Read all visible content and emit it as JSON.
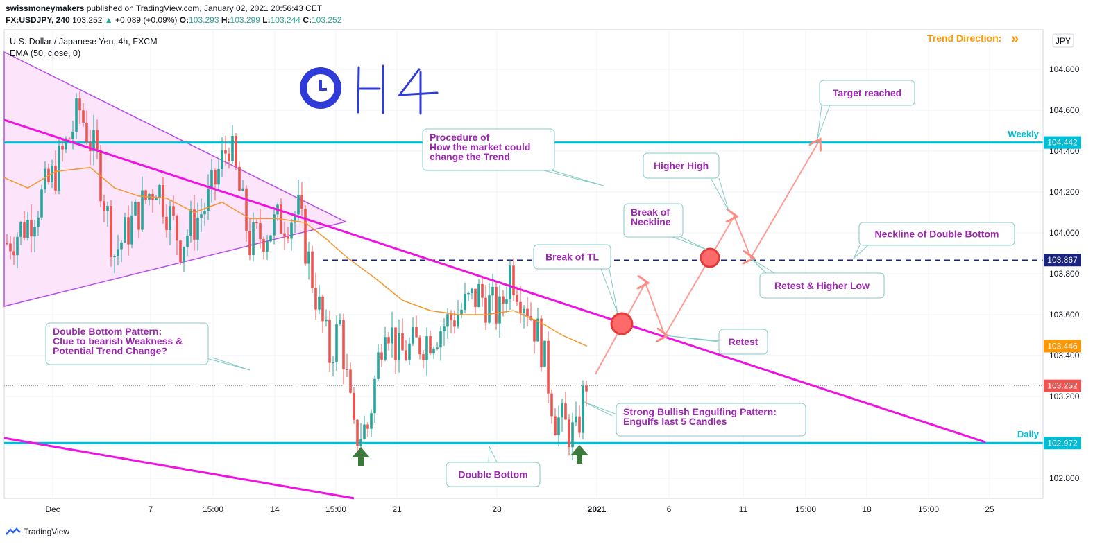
{
  "header": {
    "author": "swissmoneymakers",
    "published": "published on TradingView.com, January 02, 2021 20:56:43 CET",
    "symbol": "FX:USDJPY, 240",
    "last": "103.252",
    "change": "+0.089 (+0.09%)",
    "o_label": "O:",
    "o": "103.293",
    "h_label": "H:",
    "h": "103.299",
    "l_label": "L:",
    "l": "103.244",
    "c_label": "C:",
    "c": "103.252"
  },
  "legend": {
    "instrument": "U.S. Dollar / Japanese Yen, 4h, FXCM",
    "indicator": "EMA (50, close, 0)"
  },
  "footer": {
    "brand": "TradingView"
  },
  "chart_data": {
    "type": "candlestick",
    "currency": "JPY",
    "ylim": [
      102.65,
      104.98
    ],
    "y_ticks": [
      "104.800",
      "104.600",
      "104.400",
      "104.200",
      "104.000",
      "103.800",
      "103.600",
      "103.400",
      "103.200",
      "102.800"
    ],
    "x_ticks": [
      "Dec",
      "7",
      "15:00",
      "14",
      "15:00",
      "21",
      "28",
      "2021",
      "6",
      "11",
      "15:00",
      "18",
      "15:00",
      "25"
    ],
    "price_labels": [
      {
        "value": "104.442",
        "level": 104.442,
        "color": "#00bcd4"
      },
      {
        "value": "103.867",
        "level": 103.867,
        "color": "#1a237e"
      },
      {
        "value": "103.446",
        "level": 103.446,
        "color": "#ff9800"
      },
      {
        "value": "103.252",
        "level": 103.252,
        "color": "#ef5350"
      },
      {
        "value": "102.972",
        "level": 102.972,
        "color": "#00bcd4"
      }
    ],
    "levels": [
      {
        "name": "Weekly",
        "value": 104.442
      },
      {
        "name": "Daily",
        "value": 102.972
      },
      {
        "name": "Neckline",
        "value": 103.867
      }
    ],
    "series": [
      {
        "name": "USDJPY 4h",
        "colors": {
          "up": "#26a69a",
          "down": "#ef5350"
        },
        "close_last": 103.252
      },
      {
        "name": "EMA (50, close, 0)",
        "color": "#ff9800",
        "last": 103.446
      }
    ],
    "annotations": {
      "trend_direction": "Trend Direction: ",
      "h4": "H4",
      "target": "Target reached",
      "procedure": [
        "Procedure of",
        "How the market could",
        "change the Trend"
      ],
      "higher_high": "Higher High",
      "break_neckline": [
        "Break of",
        "Neckline"
      ],
      "neckline_db": "Neckline of Double Bottom",
      "break_tl": "Break of TL",
      "retest_hl": "Retest & Higher Low",
      "retest": "Retest",
      "double_bottom_pattern": [
        "Double Bottom Pattern:",
        "Clue to bearish Weakness &",
        "Potential Trend Change?"
      ],
      "engulfing": [
        "Strong Bullish Engulfing Pattern:",
        "Engulfs last 5 Candles"
      ],
      "double_bottom": "Double Bottom",
      "weekly": "Weekly",
      "daily": "Daily"
    }
  }
}
